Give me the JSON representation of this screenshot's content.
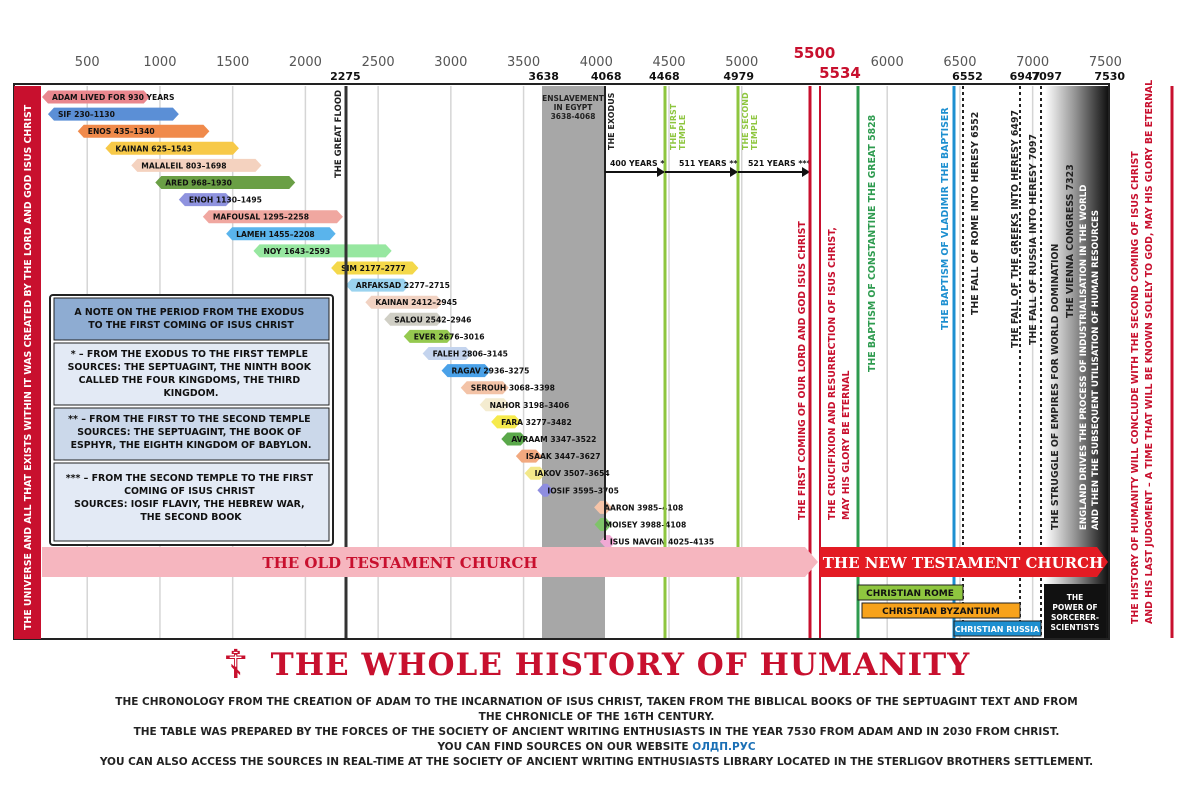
{
  "axis": {
    "top_ticks": [
      "500",
      "1000",
      "1500",
      "2000",
      "2500",
      "3000",
      "3500",
      "4000",
      "4500",
      "5000",
      "5500",
      "6000",
      "6500",
      "7000",
      "7500"
    ],
    "highlight_tick": "5500",
    "event_years": [
      {
        "label": "2275"
      },
      {
        "label": "3638"
      },
      {
        "label": "4068"
      },
      {
        "label": "4468"
      },
      {
        "label": "4979"
      },
      {
        "label": "5534"
      },
      {
        "label": "6552"
      },
      {
        "label": "6947"
      },
      {
        "label": "7097"
      },
      {
        "label": "7530"
      }
    ]
  },
  "left_banner": "THE UNIVERSE AND ALL THAT EXISTS WITHIN IT WAS CREATED BY THE LORD AND GOD ISUS CHRIST",
  "right_banner": {
    "line1": "THE HISTORY OF HUMANITY WILL CONCLUDE WITH THE SECOND COMING OF ISUS CHRIST",
    "line2": "AND HIS LAST JUDGMENT – A TIME THAT WILL BE KNOWN SOLELY TO GOD, MAY HIS GLORY BE ETERNAL"
  },
  "patriarchs": [
    {
      "label": "ADAM LIVED FOR 930 YEARS",
      "start": 0,
      "end": 930,
      "color": "#e9878e"
    },
    {
      "label": "SIF 230–1130",
      "start": 230,
      "end": 1130,
      "color": "#5b8fd6"
    },
    {
      "label": "ENOS 435–1340",
      "start": 435,
      "end": 1340,
      "color": "#f08a4b"
    },
    {
      "label": "KAINAN 625–1543",
      "start": 625,
      "end": 1543,
      "color": "#f7c948"
    },
    {
      "label": "MALALEIL 803–1698",
      "start": 803,
      "end": 1698,
      "color": "#f4d2bf"
    },
    {
      "label": "ARED 968–1930",
      "start": 968,
      "end": 1930,
      "color": "#6a9f45"
    },
    {
      "label": "ENOH 1130–1495",
      "start": 1130,
      "end": 1495,
      "color": "#8f93df"
    },
    {
      "label": "MAFOUSAL 1295–2258",
      "start": 1295,
      "end": 2258,
      "color": "#f0a7a0"
    },
    {
      "label": "LAMEH 1455–2208",
      "start": 1455,
      "end": 2208,
      "color": "#5ab4ec"
    },
    {
      "label": "NOY 1643–2593",
      "start": 1643,
      "end": 2593,
      "color": "#97e7a0"
    },
    {
      "label": "SIM 2177–2777",
      "start": 2177,
      "end": 2777,
      "color": "#f4d84a"
    },
    {
      "label": "ARFAKSAD 2277–2715",
      "start": 2277,
      "end": 2715,
      "color": "#9bd3ef"
    },
    {
      "label": "KAINAN 2412–2945",
      "start": 2412,
      "end": 2945,
      "color": "#f1d2c2"
    },
    {
      "label": "SALOU 2542–2946",
      "start": 2542,
      "end": 2946,
      "color": "#d0cfc5"
    },
    {
      "label": "EVER 2676–3016",
      "start": 2676,
      "end": 3016,
      "color": "#95c94f"
    },
    {
      "label": "FALEH 2806–3145",
      "start": 2806,
      "end": 3145,
      "color": "#c4d4ee"
    },
    {
      "label": "RAGAV 2936–3275",
      "start": 2936,
      "end": 3275,
      "color": "#4aa1e8"
    },
    {
      "label": "SEROUH 3068–3398",
      "start": 3068,
      "end": 3398,
      "color": "#f3c3a7"
    },
    {
      "label": "NAHOR 3198–3406",
      "start": 3198,
      "end": 3406,
      "color": "#f4ecd0"
    },
    {
      "label": "FARA 3277–3482",
      "start": 3277,
      "end": 3482,
      "color": "#f6ea4c"
    },
    {
      "label": "AVRAAM 3347–3522",
      "start": 3347,
      "end": 3522,
      "color": "#5aa84a"
    },
    {
      "label": "ISAAK 3447–3627",
      "start": 3447,
      "end": 3627,
      "color": "#f2a97f"
    },
    {
      "label": "IAKOV 3507–3654",
      "start": 3507,
      "end": 3654,
      "color": "#f3e88a"
    },
    {
      "label": "IOSIF 3595–3705",
      "start": 3595,
      "end": 3705,
      "color": "#8e8de0"
    },
    {
      "label": "AARON 3985–4108",
      "start": 3985,
      "end": 4108,
      "color": "#f6c4a8"
    },
    {
      "label": "MOISEY 3988–4108",
      "start": 3988,
      "end": 4108,
      "color": "#7fc36a"
    },
    {
      "label": "ISUS NAVGIN 4025–4135",
      "start": 4025,
      "end": 4135,
      "color": "#f0a9d4"
    }
  ],
  "note_box": {
    "title": "A NOTE ON THE PERIOD FROM THE EXODUS TO THE FIRST COMING OF ISUS CHRIST",
    "item1": "* – FROM THE EXODUS TO THE FIRST TEMPLE SOURCES: THE SEPTUAGINT, THE NINTH BOOK CALLED THE FOUR KINGDOMS, THE THIRD KINGDOM.",
    "item2": "** – FROM THE FIRST TO THE SECOND TEMPLE SOURCES: THE SEPTUAGINT, THE BOOK OF ESPHYR, THE EIGHTH KINGDOM OF BABYLON.",
    "item3": "*** – FROM THE SECOND TEMPLE TO THE FIRST COMING OF ISUS CHRIST SOURCES: IOSIF FLAVIY, THE HEBREW WAR, THE SECOND BOOK"
  },
  "periods": {
    "flood": "THE GREAT FLOOD",
    "slavery1": "ENSLAVEMENT",
    "slavery2": "IN EGYPT",
    "slavery3": "3638-4068",
    "exodus": "THE EXODUS",
    "first_temple": "THE FIRST TEMPLE",
    "second_temple": "THE SECOND TEMPLE",
    "gap1": "400 YEARS *",
    "gap2": "511 YEARS **",
    "gap3": "521 YEARS ***",
    "first_coming": "THE FIRST COMING OF OUR LORD AND GOD ISUS CHRIST",
    "crucifixion1": "THE CRUCIFIXION AND RESURRECTION OF ISUS CHRIST,",
    "crucifixion2": "MAY HIS GLORY BE ETERNAL",
    "constantine": "THE BAPTISM OF CONSTANTINE THE GREAT  5828",
    "vladimir": "THE BAPTISM OF VLADIMIR THE BAPTISER",
    "fall_rome": "THE FALL OF ROME INTO HERESY  6552",
    "fall_greeks": "THE FALL OF THE GREEKS INTO HERESY  6497",
    "fall_russia": "THE FALL OF RUSSIA INTO HERESY  7097",
    "struggle": "THE STRUGGLE OF EMPIRES FOR WORLD DOMINATION",
    "vienna": "THE VIENNA CONGRESS  7323",
    "england1": "ENGLAND DRIVES THE PROCESS OF INDUSTRIALISATION IN THE WORLD",
    "england2": "AND THEN THE SUBSEQUENT UTILISATION OF HUMAN RESOURCES"
  },
  "churches": {
    "old": "THE OLD TESTAMENT CHURCH",
    "new": "THE NEW TESTAMENT CHURCH"
  },
  "eras": {
    "rome": "CHRISTIAN ROME",
    "byzantium": "CHRISTIAN BYZANTIUM",
    "russia": "CHRISTIAN RUSSIA",
    "sorcerers1": "THE",
    "sorcerers2": "POWER OF",
    "sorcerers3": "SORCERER-",
    "sorcerers4": "SCIENTISTS"
  },
  "footer": {
    "cross": "☦",
    "title": "THE WHOLE HISTORY OF HUMANITY",
    "line1": "THE CHRONOLOGY FROM THE CREATION OF ADAM TO THE INCARNATION OF ISUS CHRIST, TAKEN FROM THE BIBLICAL BOOKS OF THE SEPTUAGINT TEXT AND FROM",
    "line2": "THE CHRONICLE OF THE 16TH CENTURY.",
    "line3": "THE TABLE WAS PREPARED BY THE FORCES OF THE SOCIETY OF ANCIENT WRITING ENTHUSIASTS IN THE YEAR 7530 FROM ADAM AND IN 2030 FROM CHRIST.",
    "line4_pre": "YOU CAN FIND SOURCES ON OUR WEBSITE ",
    "line4_link": "ОЛДП.РУС",
    "line5": "YOU CAN ALSO ACCESS THE SOURCES IN REAL-TIME AT THE SOCIETY OF ANCIENT WRITING ENTHUSIASTS LIBRARY LOCATED IN THE STERLIGOV BROTHERS SETTLEMENT."
  },
  "colors": {
    "red": "#c8102e",
    "pink": "#f6b6bf",
    "green": "#8ec63f",
    "darkgreen": "#2e9b4f",
    "blue": "#1d8fd0",
    "grey": "#a0a0a0",
    "orange": "#f7a21b"
  }
}
